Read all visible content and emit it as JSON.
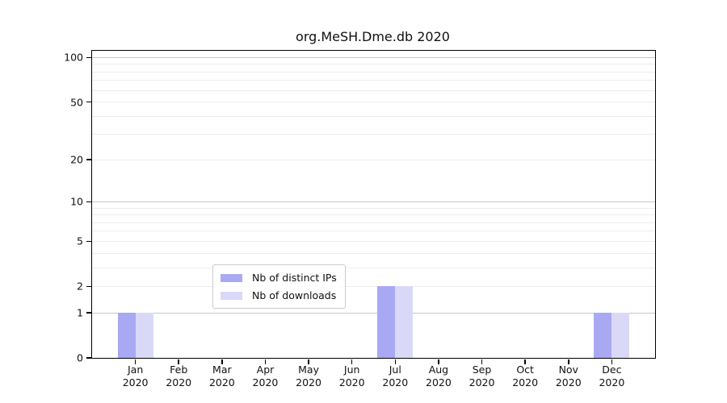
{
  "chart_data": {
    "type": "bar",
    "title": "org.MeSH.Dme.db 2020",
    "categories": [
      "Jan",
      "Feb",
      "Mar",
      "Apr",
      "May",
      "Jun",
      "Jul",
      "Aug",
      "Sep",
      "Oct",
      "Nov",
      "Dec"
    ],
    "year_label": "2020",
    "series": [
      {
        "name": "Nb of distinct IPs",
        "color": "#a9a9f3",
        "values": [
          1,
          0,
          0,
          0,
          0,
          0,
          2,
          0,
          0,
          0,
          0,
          1
        ]
      },
      {
        "name": "Nb of downloads",
        "color": "#d9d9f7",
        "values": [
          1,
          0,
          0,
          0,
          0,
          0,
          2,
          0,
          0,
          0,
          0,
          1
        ]
      }
    ],
    "xlabel": "",
    "ylabel": "",
    "y_ticks": [
      0,
      1,
      2,
      5,
      10,
      20,
      50,
      100
    ],
    "yscale": "log10(1+v)",
    "ylim": [
      0,
      111
    ],
    "grid": "horizontal",
    "legend_position": "bottom-center"
  }
}
